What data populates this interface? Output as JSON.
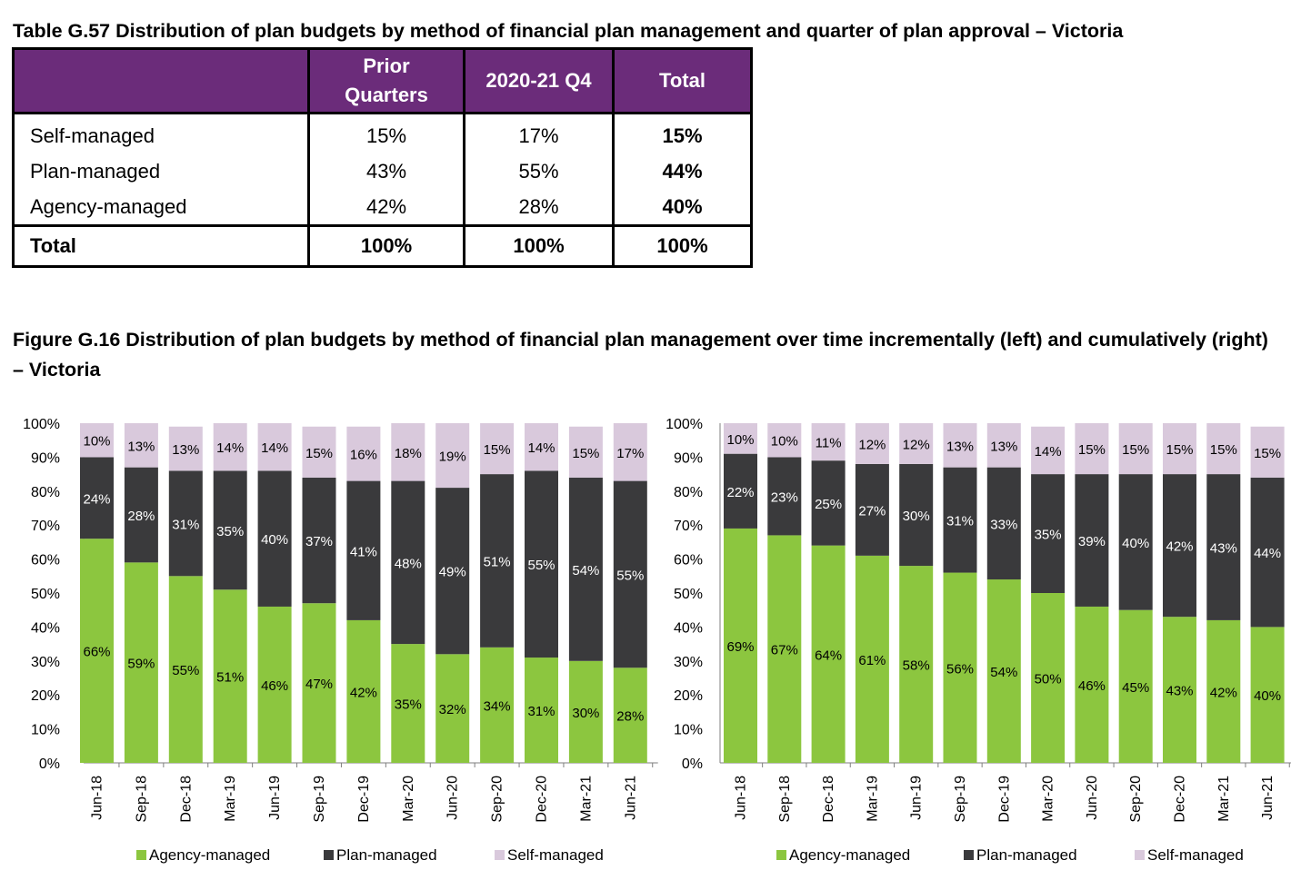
{
  "table": {
    "title": "Table G.57 Distribution of plan budgets by method of financial plan management and quarter of plan approval – Victoria",
    "header": {
      "blank": "",
      "col1_line1": "Prior",
      "col1_line2": "Quarters",
      "col2": "2020-21 Q4",
      "col3": "Total"
    },
    "rows": [
      {
        "label": "Self-managed",
        "prior": "15%",
        "q4": "17%",
        "total": "15%"
      },
      {
        "label": "Plan-managed",
        "prior": "43%",
        "q4": "55%",
        "total": "44%"
      },
      {
        "label": "Agency-managed",
        "prior": "42%",
        "q4": "28%",
        "total": "40%"
      }
    ],
    "total_row": {
      "label": "Total",
      "prior": "100%",
      "q4": "100%",
      "total": "100%"
    }
  },
  "figure": {
    "title": "Figure G.16 Distribution of plan budgets by method of financial plan management over time incrementally (left) and cumulatively (right) – Victoria"
  },
  "colors": {
    "header": "#6b2c7a",
    "agency": "#8cc63f",
    "plan": "#3a3a3c",
    "self": "#d9c9dc"
  },
  "chart_data": [
    {
      "type": "bar",
      "stacked": true,
      "categories": [
        "Jun-18",
        "Sep-18",
        "Dec-18",
        "Mar-19",
        "Jun-19",
        "Sep-19",
        "Dec-19",
        "Mar-20",
        "Jun-20",
        "Sep-20",
        "Dec-20",
        "Mar-21",
        "Jun-21"
      ],
      "series": [
        {
          "name": "Agency-managed",
          "values": [
            66,
            59,
            55,
            51,
            46,
            47,
            42,
            35,
            32,
            34,
            31,
            30,
            28
          ]
        },
        {
          "name": "Plan-managed",
          "values": [
            24,
            28,
            31,
            35,
            40,
            37,
            41,
            48,
            49,
            51,
            55,
            54,
            55
          ]
        },
        {
          "name": "Self-managed",
          "values": [
            10,
            13,
            13,
            14,
            14,
            15,
            16,
            18,
            19,
            15,
            14,
            15,
            17
          ]
        }
      ],
      "yticks": [
        "0%",
        "10%",
        "20%",
        "30%",
        "40%",
        "50%",
        "60%",
        "70%",
        "80%",
        "90%",
        "100%"
      ],
      "ylim": [
        0,
        100
      ],
      "legend": "bottom"
    },
    {
      "type": "bar",
      "stacked": true,
      "categories": [
        "Jun-18",
        "Sep-18",
        "Dec-18",
        "Mar-19",
        "Jun-19",
        "Sep-19",
        "Dec-19",
        "Mar-20",
        "Jun-20",
        "Sep-20",
        "Dec-20",
        "Mar-21",
        "Jun-21"
      ],
      "series": [
        {
          "name": "Agency-managed",
          "values": [
            69,
            67,
            64,
            61,
            58,
            56,
            54,
            50,
            46,
            45,
            43,
            42,
            40
          ]
        },
        {
          "name": "Plan-managed",
          "values": [
            22,
            23,
            25,
            27,
            30,
            31,
            33,
            35,
            39,
            40,
            42,
            43,
            44
          ]
        },
        {
          "name": "Self-managed",
          "values": [
            10,
            10,
            11,
            12,
            12,
            13,
            13,
            14,
            15,
            15,
            15,
            15,
            15
          ]
        }
      ],
      "yticks": [
        "0%",
        "10%",
        "20%",
        "30%",
        "40%",
        "50%",
        "60%",
        "70%",
        "80%",
        "90%",
        "100%"
      ],
      "ylim": [
        0,
        100
      ],
      "legend": "bottom"
    }
  ]
}
